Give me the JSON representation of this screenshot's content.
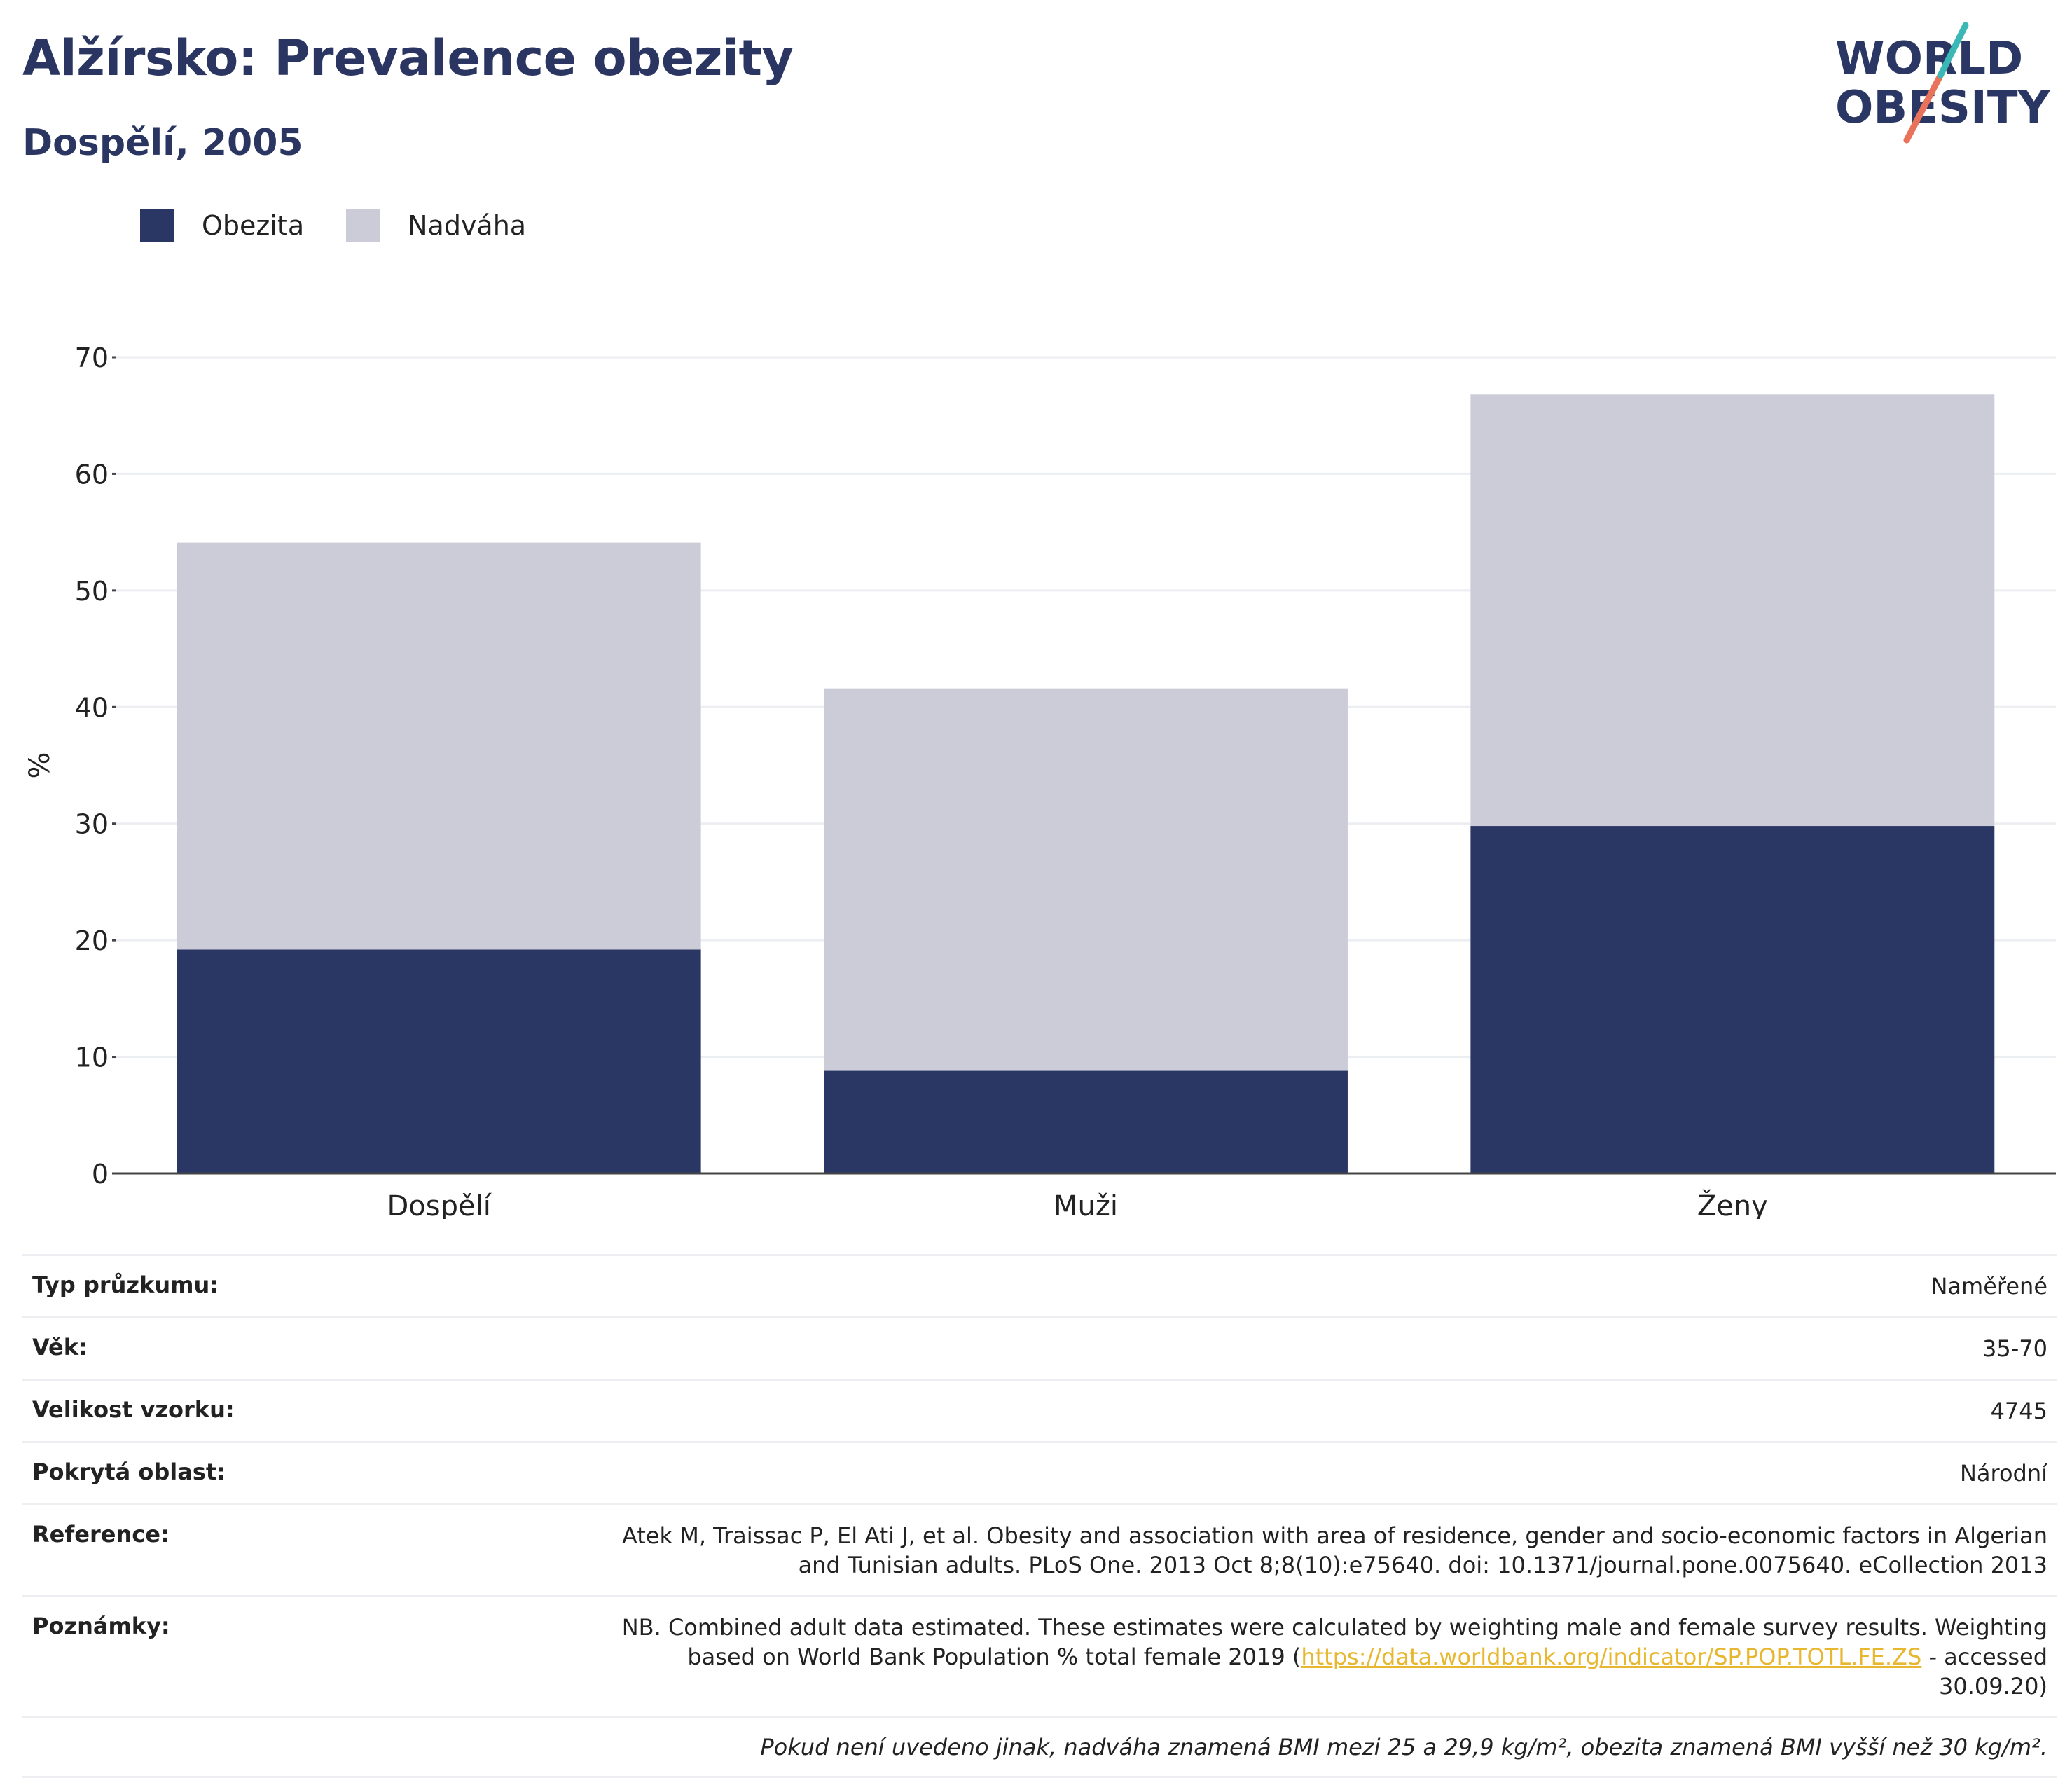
{
  "header": {
    "title": "Alžírsko: Prevalence obezity",
    "subtitle": "Dospělí, 2005"
  },
  "logo": {
    "line1": "WORLD",
    "line2": "OBESITY"
  },
  "legend": {
    "obesity_label": "Obezita",
    "overweight_label": "Nadváha"
  },
  "colors": {
    "obesity": "#2a3663",
    "overweight": "#cbccd8",
    "link": "#e8b730"
  },
  "chart_data": {
    "type": "bar",
    "stacked": true,
    "categories": [
      "Dospělí",
      "Muži",
      "Ženy"
    ],
    "series": [
      {
        "name": "Obezita",
        "values": [
          19.2,
          8.8,
          29.8
        ]
      },
      {
        "name": "Nadváha",
        "values": [
          34.9,
          32.8,
          37.0
        ]
      }
    ],
    "ylabel": "%",
    "ylim": [
      0,
      70
    ],
    "yticks": [
      0,
      10,
      20,
      30,
      40,
      50,
      60,
      70
    ],
    "grid": true,
    "legend_position": "top-left"
  },
  "meta": {
    "survey_type_label": "Typ průzkumu:",
    "survey_type_value": "Naměřené",
    "age_label": "Věk:",
    "age_value": "35-70",
    "sample_label": "Velikost vzorku:",
    "sample_value": "4745",
    "area_label": "Pokrytá oblast:",
    "area_value": "Národní",
    "reference_label": "Reference:",
    "reference_value": "Atek M, Traissac P, El Ati J, et al. Obesity and association with area of residence, gender and socio-economic factors in Algerian and Tunisian adults. PLoS One. 2013 Oct 8;8(10):e75640. doi: 10.1371/journal.pone.0075640. eCollection 2013",
    "notes_label": "Poznámky:",
    "notes_prefix": "NB. Combined adult data estimated. These estimates were calculated by weighting male and female survey results. Weighting based on World Bank Population % total female 2019 (",
    "notes_link": "https://data.worldbank.org/indicator/SP.POP.TOTL.FE.ZS",
    "notes_suffix": " - accessed 30.09.20)",
    "footnote": "Pokud není uvedeno jinak, nadváha znamená BMI mezi 25 a 29,9 kg/m², obezita znamená BMI vyšší než 30 kg/m²."
  }
}
